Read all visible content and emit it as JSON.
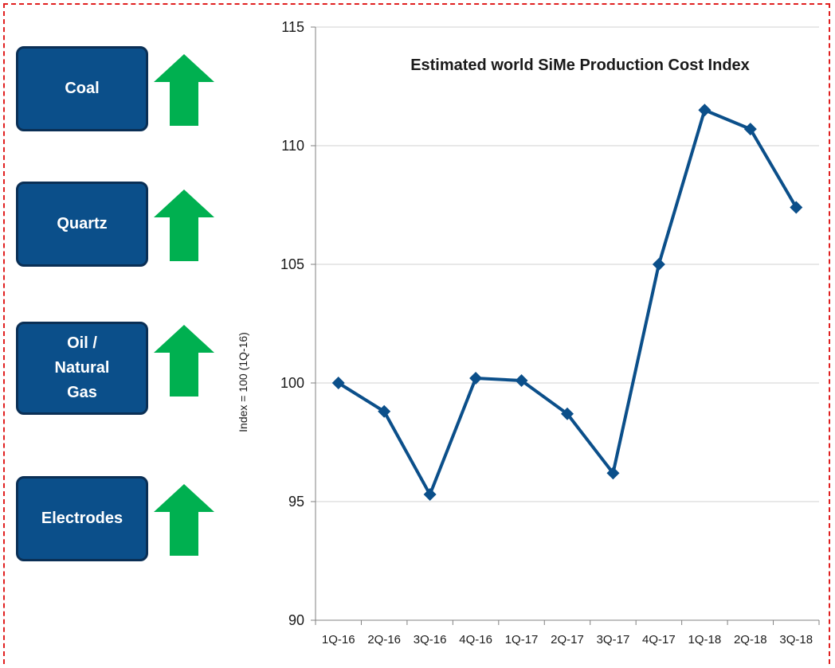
{
  "cost_drivers": [
    {
      "label": "Coal",
      "trend_icon": "up-arrow-icon"
    },
    {
      "label": "Quartz",
      "trend_icon": "up-arrow-icon"
    },
    {
      "label": "Oil /\nNatural\nGas",
      "trend_icon": "up-arrow-icon"
    },
    {
      "label": "Electrodes",
      "trend_icon": "up-arrow-icon"
    }
  ],
  "colors": {
    "box_fill": "#0b4f8a",
    "box_border": "#0a2f55",
    "arrow": "#00b050",
    "line": "#0b4f8a",
    "frame": "#e02020"
  },
  "chart_data": {
    "type": "line",
    "title": "Estimated world SiMe Production Cost Index",
    "xlabel": "",
    "ylabel": "Index = 100 (1Q-16)",
    "categories": [
      "1Q-16",
      "2Q-16",
      "3Q-16",
      "4Q-16",
      "1Q-17",
      "2Q-17",
      "3Q-17",
      "4Q-17",
      "1Q-18",
      "2Q-18",
      "3Q-18"
    ],
    "series": [
      {
        "values": [
          100.0,
          98.8,
          95.3,
          100.2,
          100.1,
          98.7,
          96.2,
          105.0,
          111.5,
          110.7,
          107.4
        ]
      }
    ],
    "ylim": [
      90,
      115
    ],
    "yticks": [
      90,
      95,
      100,
      105,
      110,
      115
    ],
    "grid": true,
    "legend": "none",
    "marker": "diamond"
  }
}
